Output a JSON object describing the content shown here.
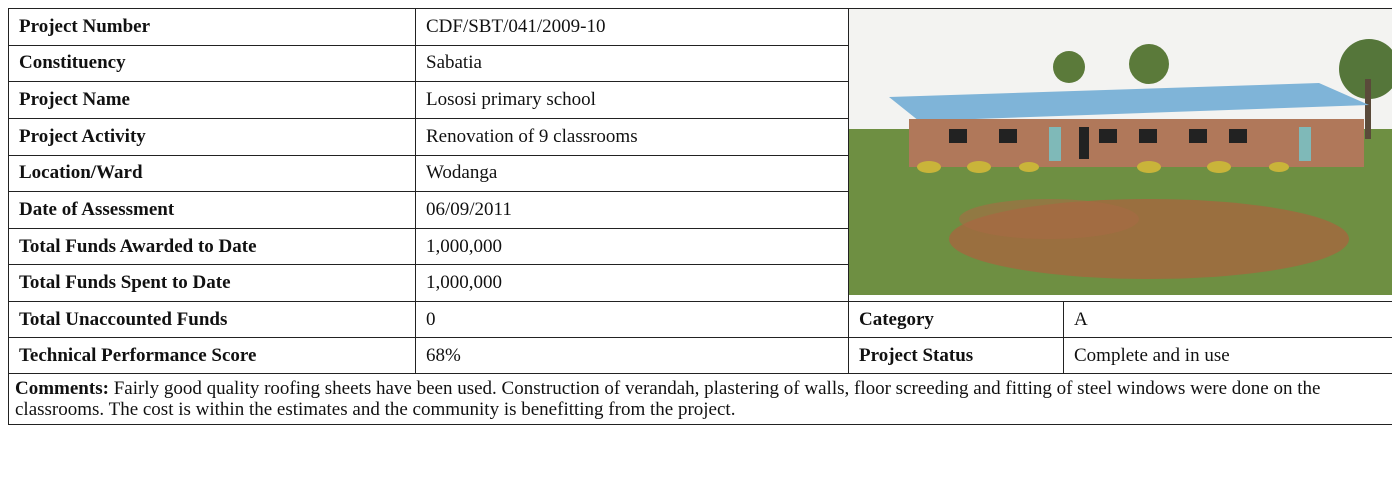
{
  "table": {
    "rows": [
      [
        "Project Number",
        "CDF/SBT/041/2009-10"
      ],
      [
        "Constituency",
        "Sabatia"
      ],
      [
        "Project Name",
        "Lososi primary school"
      ],
      [
        "Project Activity",
        "Renovation of 9 classrooms"
      ],
      [
        "Location/Ward",
        "Wodanga"
      ],
      [
        "Date of Assessment",
        "06/09/2011"
      ],
      [
        "Total Funds Awarded to Date",
        "1,000,000"
      ],
      [
        "Total Funds Spent to Date",
        "1,000,000"
      ],
      [
        "Total Unaccounted Funds",
        "0",
        "Category",
        "A"
      ],
      [
        "Technical Performance Score",
        "68%",
        "Project Status",
        "Complete and in use"
      ]
    ],
    "comments": {
      "label": "Comments:",
      "text": "Fairly good quality roofing sheets have been used. Construction of verandah, plastering of walls, floor screeding and fitting of steel windows were done on the classrooms. The cost is within the estimates and the community is benefitting from the project."
    }
  }
}
